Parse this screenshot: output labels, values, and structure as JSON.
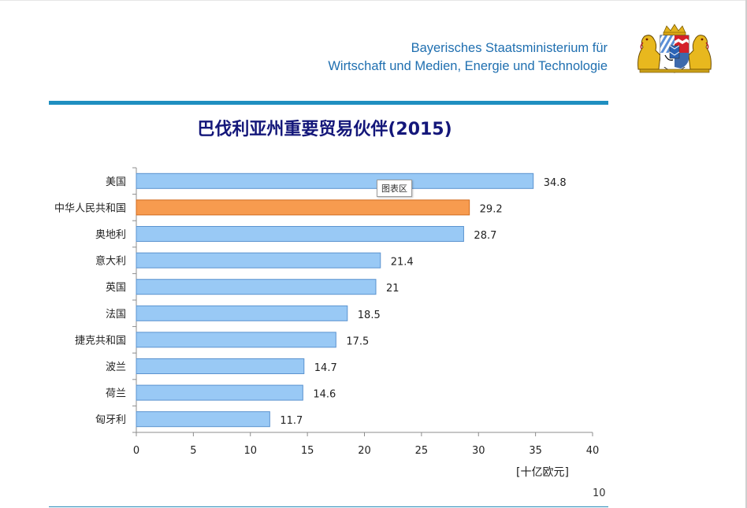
{
  "header": {
    "line1": "Bayerisches Staatsministerium für",
    "line2": "Wirtschaft und Medien, Energie und Technologie"
  },
  "colors": {
    "accent": "#1f8fc0",
    "bar": "#99c9f5",
    "bar_border": "#5b93cf",
    "highlight_bar": "#f79b4f",
    "highlight_border": "#d06b1f",
    "title": "#14177a"
  },
  "chart_data": {
    "type": "bar",
    "orientation": "horizontal",
    "title": "巴伐利亚州重要贸易伙伴(2015)",
    "categories": [
      "美国",
      "中华人民共和国",
      "奥地利",
      "意大利",
      "英国",
      "法国",
      "捷克共和国",
      "波兰",
      "荷兰",
      "匈牙利"
    ],
    "values": [
      34.8,
      29.2,
      28.7,
      21.4,
      21,
      18.5,
      17.5,
      14.7,
      14.6,
      11.7
    ],
    "value_labels": [
      "34.8",
      "29.2",
      "28.7",
      "21.4",
      "21",
      "18.5",
      "17.5",
      "14.7",
      "14.6",
      "11.7"
    ],
    "highlight": "中华人民共和国",
    "xlim": [
      0,
      40
    ],
    "xticks": [
      "0",
      "5",
      "10",
      "15",
      "20",
      "25",
      "30",
      "35",
      "40"
    ],
    "unit_label": "[十亿欧元]",
    "grid": false,
    "legend": "none"
  },
  "tooltip": "图表区",
  "page_number": "10"
}
